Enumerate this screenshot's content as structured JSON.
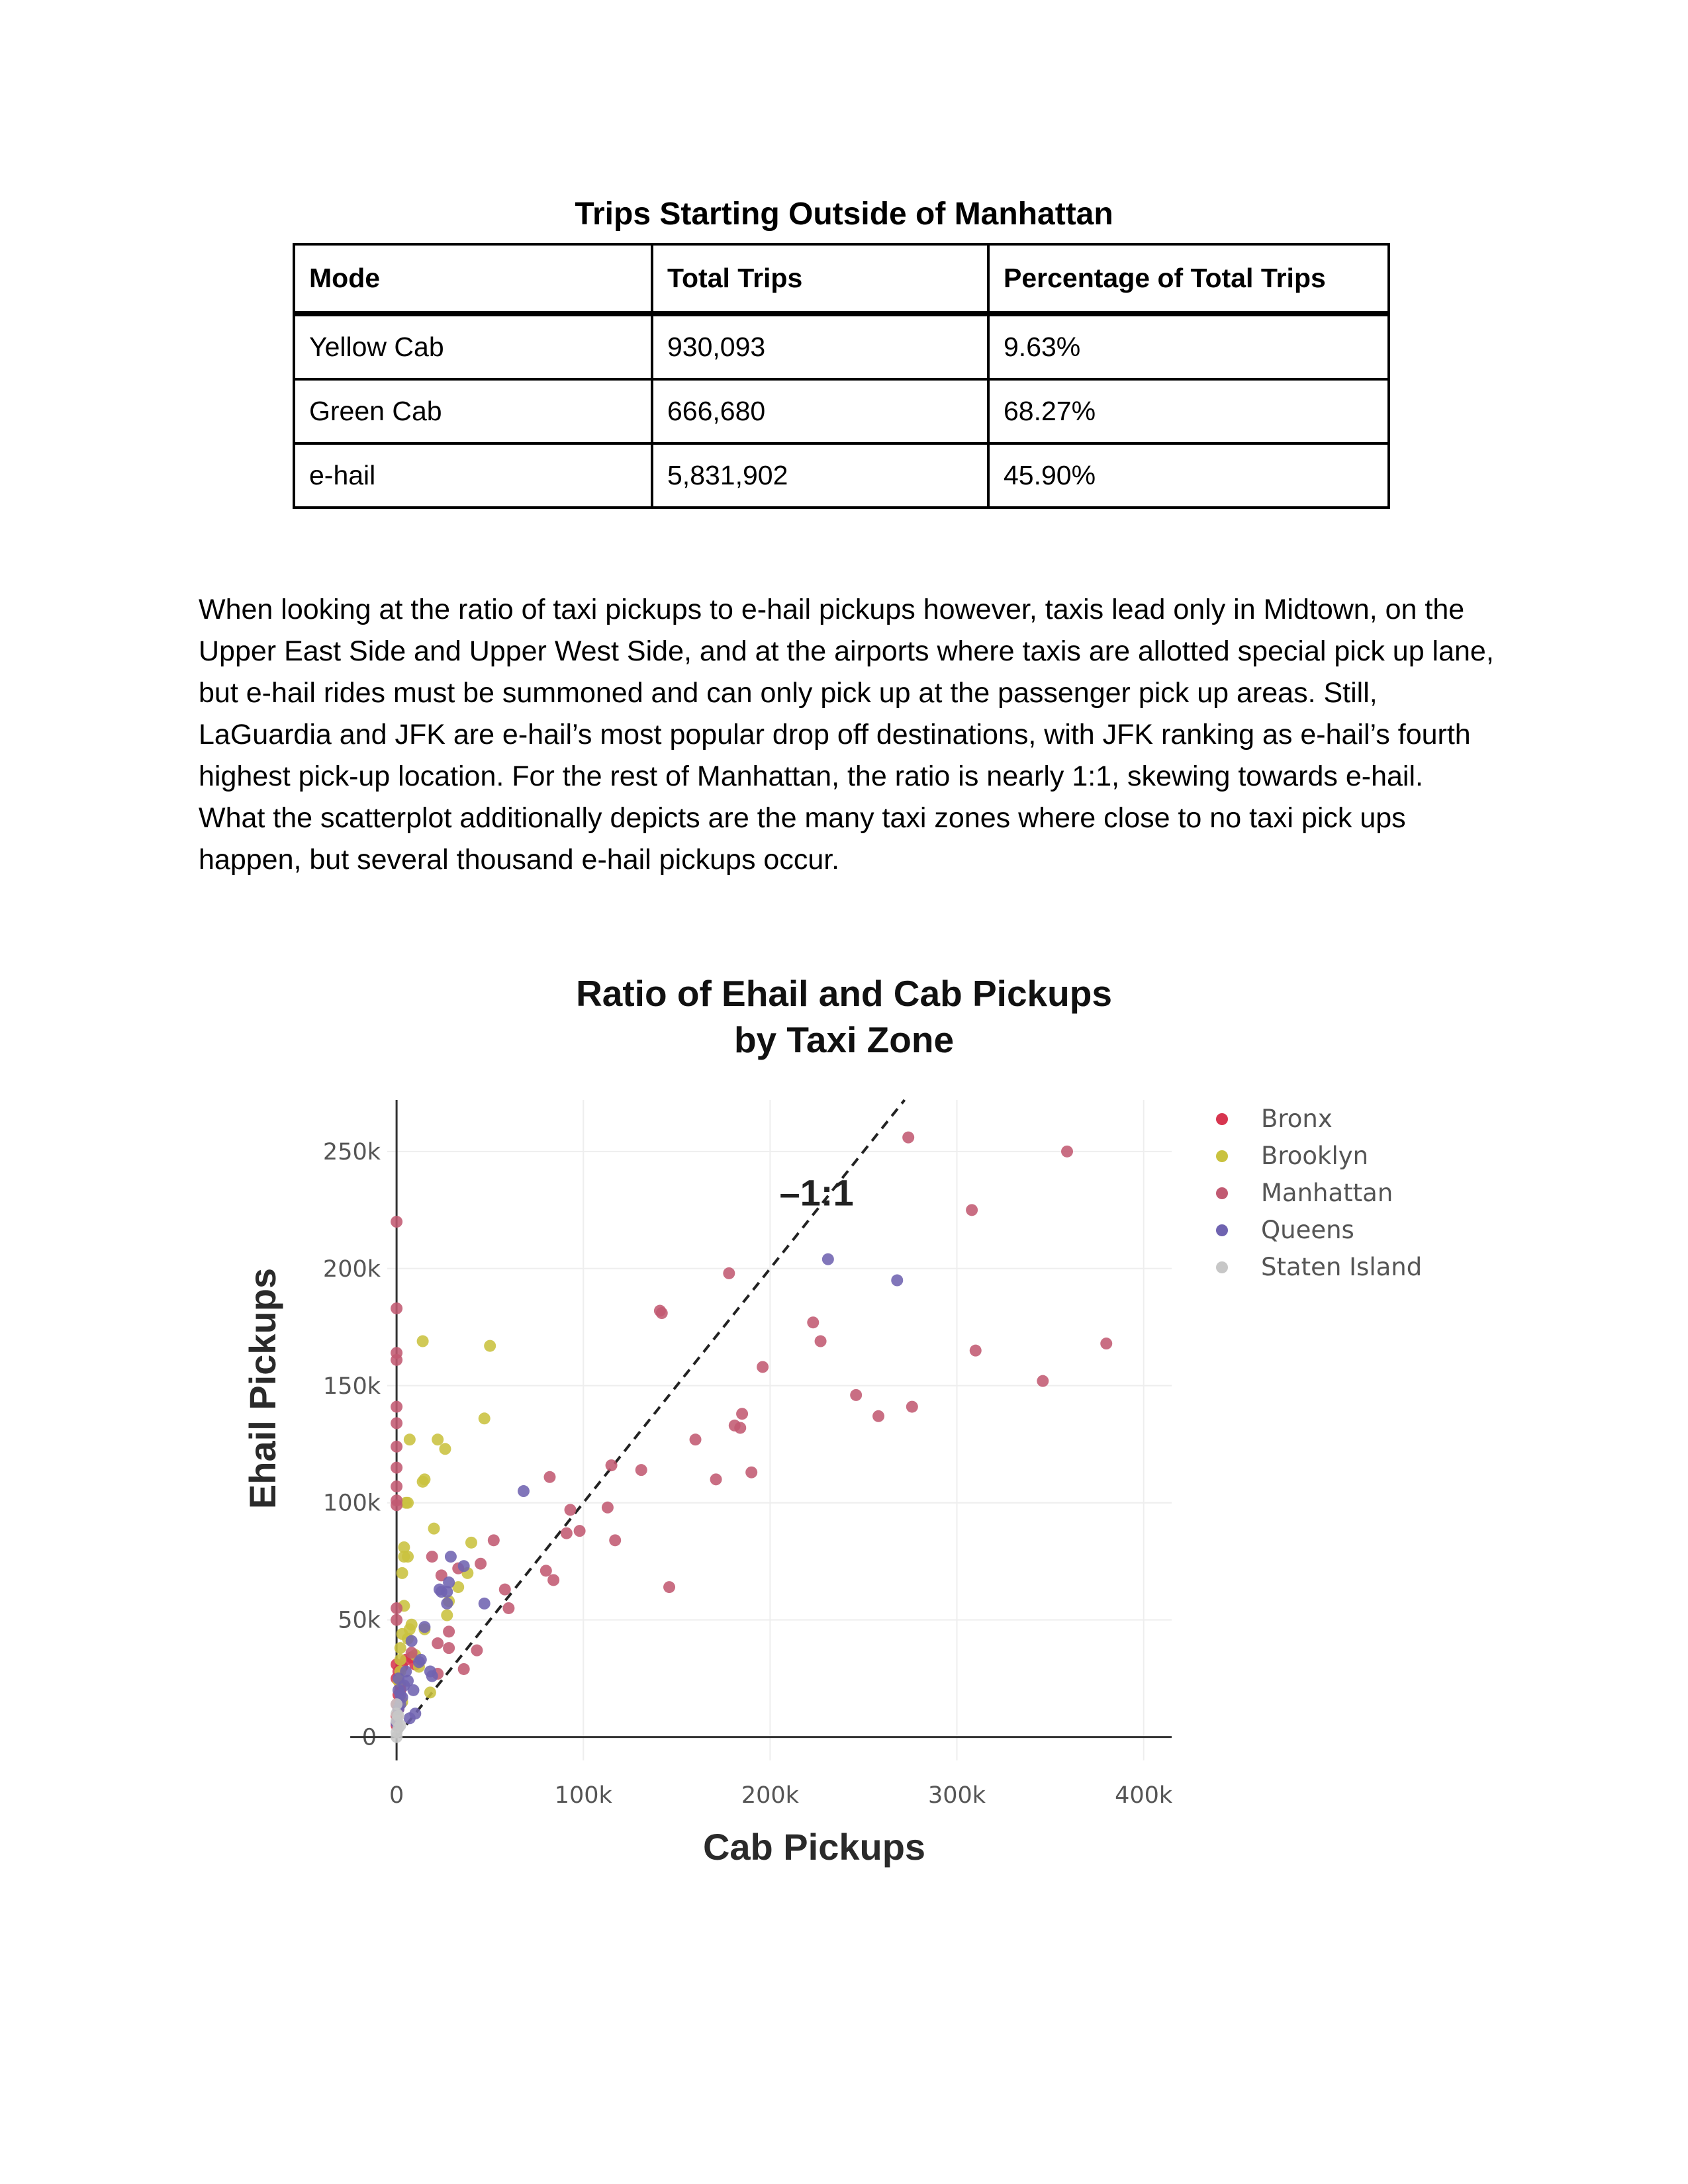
{
  "table": {
    "title": "Trips Starting Outside of Manhattan",
    "headers": [
      "Mode",
      "Total Trips",
      "Percentage of Total Trips"
    ],
    "rows": [
      [
        "Yellow Cab",
        "930,093",
        "9.63%"
      ],
      [
        "Green Cab",
        "666,680",
        "68.27%"
      ],
      [
        "e-hail",
        "5,831,902",
        "45.90%"
      ]
    ]
  },
  "paragraph": "When looking at the ratio of taxi pickups to e-hail pickups however, taxis lead only in Midtown, on the Upper East Side and Upper West Side, and at the airports where taxis are allotted special pick up lane, but e-hail rides must be summoned and can only pick up at the passenger pick up areas. Still, LaGuardia and JFK are e-hail’s most popular drop off destinations, with JFK ranking as e-hail’s fourth highest pick-up location. For the rest of Manhattan, the ratio is nearly 1:1, skewing towards e-hail. What the scatterplot additionally depicts are the many taxi zones where close to no taxi pick ups happen, but several thousand e-hail pickups occur.",
  "chart_data": {
    "type": "scatter",
    "title": "Ratio of Ehail and Cab Pickups",
    "subtitle": "by Taxi Zone",
    "xlabel": "Cab Pickups",
    "ylabel": "Ehail Pickups",
    "xlim": [
      -5000,
      415000
    ],
    "ylim": [
      -10000,
      272000
    ],
    "x_ticks": [
      0,
      100000,
      200000,
      300000,
      400000
    ],
    "x_tick_labels": [
      "0",
      "100k",
      "200k",
      "300k",
      "400k"
    ],
    "y_ticks": [
      0,
      50000,
      100000,
      150000,
      200000,
      250000
    ],
    "y_tick_labels": [
      "0",
      "50k",
      "100k",
      "150k",
      "200k",
      "250k"
    ],
    "grid": true,
    "legend_position": "top-right",
    "annotation": {
      "text": "1:1",
      "line": "y = x (dashed)"
    },
    "series": [
      {
        "name": "Bronx",
        "color": "#d7354f",
        "x": [
          0,
          0,
          1000,
          2000,
          1000,
          3000,
          0,
          5000,
          8000,
          10000,
          0,
          1000,
          2000,
          0
        ],
        "y": [
          31000,
          25000,
          28000,
          22000,
          18000,
          30000,
          14000,
          33000,
          34000,
          31000,
          9000,
          12000,
          20000,
          5000
        ]
      },
      {
        "name": "Brooklyn",
        "color": "#c9c23f",
        "x": [
          14000,
          50000,
          47000,
          22000,
          26000,
          7000,
          15000,
          14000,
          5000,
          6000,
          4000,
          4000,
          6000,
          3000,
          20000,
          40000,
          38000,
          33000,
          28000,
          27000,
          15000,
          7000,
          6000,
          3000,
          2000,
          10000,
          2000,
          18000,
          4000,
          8000,
          1000,
          2000,
          12000,
          3000
        ],
        "y": [
          169000,
          167000,
          136000,
          127000,
          123000,
          127000,
          110000,
          109000,
          100000,
          100000,
          81000,
          77000,
          77000,
          70000,
          89000,
          83000,
          70000,
          64000,
          58000,
          52000,
          46000,
          46000,
          42000,
          44000,
          38000,
          35000,
          28000,
          19000,
          56000,
          48000,
          24000,
          33000,
          30000,
          15000
        ]
      },
      {
        "name": "Manhattan",
        "color": "#c15a72",
        "x": [
          274000,
          359000,
          308000,
          310000,
          380000,
          346000,
          276000,
          258000,
          246000,
          0,
          0,
          0,
          0,
          0,
          0,
          0,
          0,
          0,
          0,
          0,
          0,
          0,
          178000,
          141000,
          142000,
          223000,
          227000,
          196000,
          185000,
          181000,
          184000,
          160000,
          171000,
          190000,
          115000,
          131000,
          82000,
          93000,
          91000,
          98000,
          113000,
          117000,
          146000,
          80000,
          84000,
          58000,
          60000,
          52000,
          45000,
          33000,
          19000,
          24000,
          28000,
          22000,
          28000,
          8000,
          36000,
          43000,
          22000
        ],
        "y": [
          256000,
          250000,
          225000,
          165000,
          168000,
          152000,
          141000,
          137000,
          146000,
          220000,
          183000,
          164000,
          161000,
          141000,
          134000,
          124000,
          115000,
          107000,
          101000,
          99000,
          55000,
          50000,
          198000,
          182000,
          181000,
          177000,
          169000,
          158000,
          138000,
          133000,
          132000,
          127000,
          110000,
          113000,
          116000,
          114000,
          111000,
          97000,
          87000,
          88000,
          98000,
          84000,
          64000,
          71000,
          67000,
          63000,
          55000,
          84000,
          74000,
          72000,
          77000,
          69000,
          45000,
          40000,
          38000,
          36000,
          29000,
          37000,
          27000
        ]
      },
      {
        "name": "Queens",
        "color": "#6f63b0",
        "x": [
          231000,
          268000,
          68000,
          36000,
          29000,
          27000,
          27000,
          24000,
          23000,
          28000,
          18000,
          15000,
          19000,
          47000,
          9000,
          8000,
          6000,
          4000,
          10000,
          13000,
          3000,
          2000,
          1000,
          1000,
          0,
          12000,
          5000,
          2000,
          1000,
          7000
        ],
        "y": [
          204000,
          195000,
          105000,
          73000,
          77000,
          62000,
          57000,
          62000,
          63000,
          66000,
          28000,
          47000,
          26000,
          57000,
          20000,
          41000,
          24000,
          22000,
          10000,
          33000,
          17000,
          14000,
          12000,
          20000,
          6000,
          32000,
          28000,
          18000,
          25000,
          8000
        ]
      },
      {
        "name": "Staten Island",
        "color": "#c7c7c7",
        "x": [
          0,
          0,
          1000,
          0,
          2000,
          0,
          1000,
          0
        ],
        "y": [
          0,
          2000,
          4000,
          7000,
          5000,
          10000,
          9000,
          14000
        ]
      }
    ]
  }
}
